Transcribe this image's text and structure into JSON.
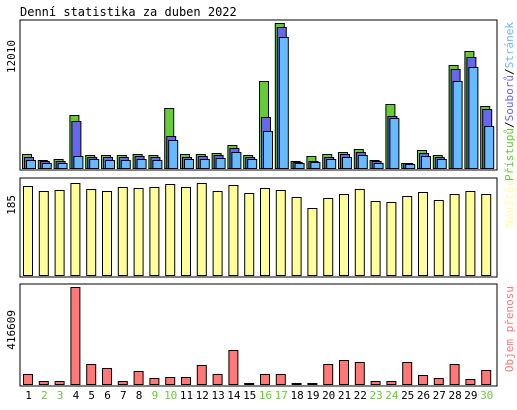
{
  "title": "Denní statistika za duben 2022",
  "colors": {
    "background": "#ffffff",
    "panel_border": "#000000",
    "hits": "#66cc33",
    "files": "#6666ee",
    "pages": "#66bbff",
    "visits": "#ffff99",
    "kbytes": "#ff7777",
    "weekend_label": "#66cc33",
    "weekday_label": "#000000"
  },
  "chart_data": [
    {
      "type": "bar",
      "name": "hits-files-pages",
      "categories": [
        "1",
        "2",
        "3",
        "4",
        "5",
        "6",
        "7",
        "8",
        "9",
        "10",
        "11",
        "12",
        "13",
        "14",
        "15",
        "16",
        "17",
        "18",
        "19",
        "20",
        "21",
        "22",
        "23",
        "24",
        "25",
        "26",
        "27",
        "28",
        "29",
        "30"
      ],
      "ymax_label": "12010",
      "ylim": [
        0,
        12010
      ],
      "legend": {
        "parts": [
          "Přístupů",
          "Souborů",
          "Stránek"
        ],
        "separator": "/"
      },
      "series": [
        {
          "name": "Přístupů",
          "color": "#66cc33",
          "values": [
            1130,
            650,
            710,
            4370,
            1110,
            1050,
            1040,
            1140,
            1040,
            4940,
            1130,
            1150,
            1240,
            1910,
            1090,
            7190,
            12010,
            550,
            980,
            1130,
            1360,
            1600,
            650,
            5330,
            450,
            1470,
            1100,
            8570,
            9670,
            5140
          ]
        },
        {
          "name": "Souborů",
          "color": "#6666ee",
          "values": [
            920,
            550,
            600,
            3920,
            930,
            880,
            880,
            970,
            880,
            2690,
            940,
            970,
            1050,
            1620,
            920,
            4200,
            11650,
            470,
            620,
            950,
            1140,
            1350,
            560,
            4300,
            390,
            1250,
            930,
            8240,
            9190,
            4900
          ]
        },
        {
          "name": "Stránek",
          "color": "#66bbff",
          "values": [
            680,
            440,
            450,
            1020,
            730,
            690,
            690,
            770,
            690,
            2330,
            740,
            760,
            830,
            1300,
            730,
            3100,
            10880,
            380,
            460,
            750,
            910,
            1080,
            450,
            4150,
            310,
            980,
            740,
            7240,
            8400,
            3450
          ]
        }
      ]
    },
    {
      "type": "bar",
      "name": "visits",
      "categories": [
        "1",
        "2",
        "3",
        "4",
        "5",
        "6",
        "7",
        "8",
        "9",
        "10",
        "11",
        "12",
        "13",
        "14",
        "15",
        "16",
        "17",
        "18",
        "19",
        "20",
        "21",
        "22",
        "23",
        "24",
        "25",
        "26",
        "27",
        "28",
        "29",
        "30"
      ],
      "ymax_label": "185",
      "ylim": [
        0,
        185
      ],
      "legend": {
        "parts": [
          "Návštěv"
        ],
        "separator": ""
      },
      "series": [
        {
          "name": "Návštěv",
          "color": "#ffff99",
          "values": [
            176,
            166,
            168,
            182,
            170,
            165,
            173,
            171,
            174,
            180,
            173,
            181,
            166,
            177,
            162,
            172,
            167,
            154,
            132,
            152,
            160,
            170,
            146,
            143,
            156,
            164,
            148,
            160,
            166,
            160
          ]
        }
      ]
    },
    {
      "type": "bar",
      "name": "kbytes",
      "categories": [
        "1",
        "2",
        "3",
        "4",
        "5",
        "6",
        "7",
        "8",
        "9",
        "10",
        "11",
        "12",
        "13",
        "14",
        "15",
        "16",
        "17",
        "18",
        "19",
        "20",
        "21",
        "22",
        "23",
        "24",
        "25",
        "26",
        "27",
        "28",
        "29",
        "30"
      ],
      "ymax_label": "416609",
      "ylim": [
        0,
        416609
      ],
      "legend": {
        "parts": [
          "Objem přenosu"
        ],
        "separator": ""
      },
      "series": [
        {
          "name": "Objem přenosu",
          "color": "#ff7777",
          "values": [
            44000,
            14000,
            12000,
            416609,
            84000,
            68000,
            14000,
            55000,
            27000,
            28000,
            28000,
            83000,
            44000,
            148000,
            5000,
            44000,
            41000,
            5000,
            5000,
            84000,
            105000,
            95000,
            11000,
            11000,
            95000,
            39000,
            27000,
            87000,
            20000,
            60000
          ]
        }
      ]
    }
  ],
  "x_axis": {
    "labels": [
      "1",
      "2",
      "3",
      "4",
      "5",
      "6",
      "7",
      "8",
      "9",
      "10",
      "11",
      "12",
      "13",
      "14",
      "15",
      "16",
      "17",
      "18",
      "19",
      "20",
      "21",
      "22",
      "23",
      "24",
      "25",
      "26",
      "27",
      "28",
      "29",
      "30"
    ],
    "weekend": [
      false,
      true,
      true,
      false,
      false,
      false,
      false,
      false,
      true,
      true,
      false,
      false,
      false,
      false,
      false,
      true,
      true,
      false,
      false,
      false,
      false,
      false,
      true,
      true,
      false,
      false,
      false,
      false,
      false,
      true
    ]
  }
}
